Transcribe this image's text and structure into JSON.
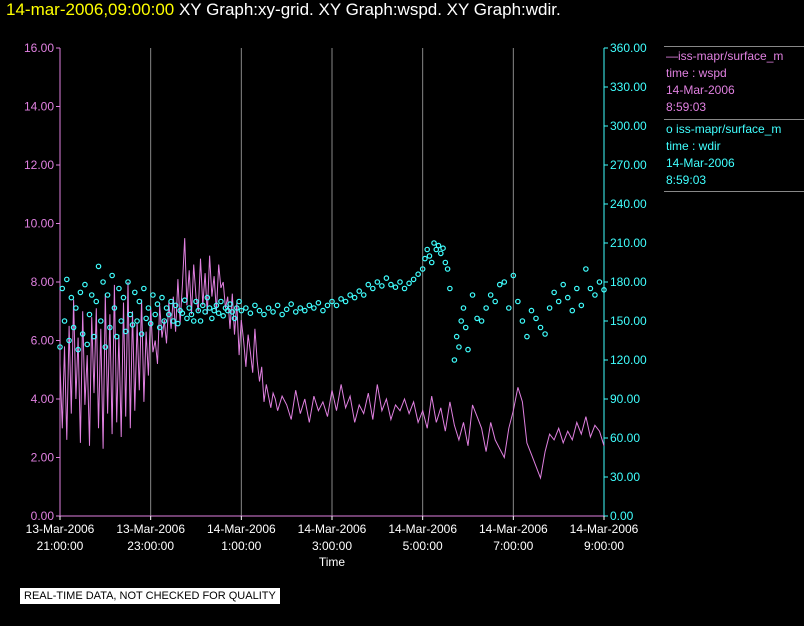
{
  "title": {
    "date": "14-mar-2006,09:00:00",
    "graphs": "XY Graph:xy-grid.  XY Graph:wspd.  XY Graph:wdir."
  },
  "legend": [
    {
      "sym": "—",
      "name": "iss-mapr/surface_m",
      "line2": "time : wspd",
      "line3": "14-Mar-2006",
      "line4": "8:59:03"
    },
    {
      "sym": "o",
      "name": "iss-mapr/surface_m",
      "line2": "time : wdir",
      "line3": "14-Mar-2006",
      "line4": "8:59:03"
    }
  ],
  "notice": "REAL-TIME DATA, NOT CHECKED FOR QUALITY",
  "colors": {
    "wspd": "#e080e0",
    "wdir": "#40ffff",
    "grid": "#888888",
    "axis_left": "#e080e0",
    "axis_right": "#40ffff",
    "tick_text": "#ffffff"
  },
  "chart_data": {
    "type": "line",
    "xlabel": "Time",
    "x_ticks": [
      {
        "h": 21,
        "l1": "13-Mar-2006",
        "l2": "21:00:00"
      },
      {
        "h": 23,
        "l1": "13-Mar-2006",
        "l2": "23:00:00"
      },
      {
        "h": 25,
        "l1": "14-Mar-2006",
        "l2": "1:00:00"
      },
      {
        "h": 27,
        "l1": "14-Mar-2006",
        "l2": "3:00:00"
      },
      {
        "h": 29,
        "l1": "14-Mar-2006",
        "l2": "5:00:00"
      },
      {
        "h": 31,
        "l1": "14-Mar-2006",
        "l2": "7:00:00"
      },
      {
        "h": 33,
        "l1": "14-Mar-2006",
        "l2": "9:00:00"
      }
    ],
    "xlim": [
      21,
      33
    ],
    "y_left": {
      "min": 0,
      "max": 16,
      "ticks": [
        "0.00",
        "2.00",
        "4.00",
        "6.00",
        "8.00",
        "10.00",
        "12.00",
        "14.00",
        "16.00"
      ]
    },
    "y_right": {
      "min": 0,
      "max": 360,
      "ticks": [
        "0.00",
        "30.00",
        "60.00",
        "90.00",
        "120.00",
        "150.00",
        "180.00",
        "210.00",
        "240.00",
        "270.00",
        "300.00",
        "330.00",
        "360.00"
      ]
    },
    "grid": true,
    "series": [
      {
        "name": "wspd",
        "axis": "left",
        "style": "line",
        "x": [
          21.0,
          21.05,
          21.1,
          21.15,
          21.2,
          21.25,
          21.3,
          21.35,
          21.4,
          21.45,
          21.5,
          21.55,
          21.6,
          21.65,
          21.7,
          21.75,
          21.8,
          21.85,
          21.9,
          21.95,
          22.0,
          22.05,
          22.1,
          22.15,
          22.2,
          22.25,
          22.3,
          22.35,
          22.4,
          22.45,
          22.5,
          22.55,
          22.6,
          22.65,
          22.7,
          22.75,
          22.8,
          22.85,
          22.9,
          22.95,
          23.0,
          23.05,
          23.1,
          23.15,
          23.2,
          23.25,
          23.3,
          23.35,
          23.4,
          23.45,
          23.5,
          23.55,
          23.6,
          23.65,
          23.7,
          23.75,
          23.8,
          23.85,
          23.9,
          23.95,
          24.0,
          24.05,
          24.1,
          24.15,
          24.2,
          24.25,
          24.3,
          24.35,
          24.4,
          24.45,
          24.5,
          24.55,
          24.6,
          24.65,
          24.7,
          24.75,
          24.8,
          24.85,
          24.9,
          24.95,
          25.0,
          25.05,
          25.1,
          25.15,
          25.2,
          25.25,
          25.3,
          25.35,
          25.4,
          25.45,
          25.5,
          25.55,
          25.6,
          25.65,
          25.7,
          25.75,
          25.8,
          25.9,
          26.0,
          26.1,
          26.2,
          26.3,
          26.4,
          26.5,
          26.6,
          26.7,
          26.8,
          26.9,
          27.0,
          27.1,
          27.2,
          27.3,
          27.4,
          27.5,
          27.6,
          27.7,
          27.8,
          27.9,
          28.0,
          28.1,
          28.2,
          28.3,
          28.4,
          28.5,
          28.6,
          28.7,
          28.8,
          28.9,
          29.0,
          29.1,
          29.2,
          29.3,
          29.4,
          29.5,
          29.6,
          29.7,
          29.8,
          29.9,
          30.0,
          30.1,
          30.2,
          30.3,
          30.4,
          30.5,
          30.6,
          30.7,
          30.8,
          30.9,
          31.0,
          31.1,
          31.2,
          31.3,
          31.4,
          31.5,
          31.6,
          31.7,
          31.8,
          31.9,
          32.0,
          32.1,
          32.2,
          32.3,
          32.4,
          32.5,
          32.6,
          32.7,
          32.8,
          32.9,
          33.0
        ],
        "values": [
          5.2,
          3.0,
          5.8,
          2.6,
          6.5,
          3.5,
          7.4,
          4.0,
          6.1,
          2.5,
          7.0,
          3.8,
          5.5,
          2.4,
          6.8,
          4.2,
          7.1,
          3.0,
          6.4,
          2.3,
          7.6,
          3.5,
          6.9,
          2.8,
          7.9,
          3.2,
          6.2,
          2.7,
          7.3,
          3.4,
          8.0,
          3.0,
          7.0,
          3.6,
          6.6,
          4.3,
          7.4,
          3.9,
          6.3,
          4.8,
          7.1,
          5.6,
          6.0,
          5.2,
          7.2,
          6.1,
          6.7,
          5.9,
          7.3,
          6.4,
          7.5,
          6.3,
          8.1,
          6.6,
          7.9,
          9.5,
          7.2,
          8.4,
          6.9,
          8.6,
          7.5,
          7.0,
          8.8,
          7.2,
          8.3,
          6.9,
          8.9,
          7.5,
          8.2,
          7.0,
          8.6,
          7.8,
          8.0,
          7.1,
          7.5,
          6.4,
          7.6,
          6.2,
          7.3,
          5.5,
          6.7,
          6.0,
          5.1,
          6.2,
          5.6,
          4.9,
          6.4,
          5.3,
          4.6,
          5.1,
          3.9,
          4.5,
          4.1,
          3.7,
          4.2,
          4.0,
          3.6,
          4.1,
          3.8,
          3.3,
          4.3,
          3.5,
          4.0,
          3.2,
          4.1,
          3.6,
          3.9,
          3.4,
          4.3,
          3.6,
          4.5,
          3.7,
          4.1,
          3.2,
          3.8,
          3.5,
          4.2,
          3.3,
          4.5,
          3.6,
          4.0,
          3.3,
          3.8,
          3.6,
          4.0,
          3.5,
          3.9,
          3.2,
          3.6,
          3.0,
          4.1,
          3.2,
          3.7,
          2.9,
          3.9,
          3.1,
          2.6,
          3.2,
          2.4,
          3.8,
          3.4,
          3.0,
          2.2,
          3.2,
          2.6,
          2.3,
          2.0,
          3.0,
          3.6,
          4.4,
          3.9,
          2.5,
          2.1,
          1.7,
          1.3,
          2.2,
          2.8,
          2.6,
          3.0,
          2.5,
          2.9,
          2.6,
          3.2,
          2.8,
          3.4,
          2.7,
          3.1,
          2.9,
          2.4
        ]
      },
      {
        "name": "wdir",
        "axis": "right",
        "style": "scatter",
        "x": [
          21.0,
          21.05,
          21.1,
          21.15,
          21.2,
          21.25,
          21.3,
          21.35,
          21.4,
          21.45,
          21.5,
          21.55,
          21.6,
          21.65,
          21.7,
          21.75,
          21.8,
          21.85,
          21.9,
          21.95,
          22.0,
          22.05,
          22.1,
          22.15,
          22.2,
          22.25,
          22.3,
          22.35,
          22.4,
          22.45,
          22.5,
          22.55,
          22.6,
          22.65,
          22.7,
          22.75,
          22.8,
          22.85,
          22.9,
          22.95,
          23.0,
          23.05,
          23.1,
          23.15,
          23.2,
          23.25,
          23.3,
          23.35,
          23.4,
          23.45,
          23.5,
          23.55,
          23.6,
          23.65,
          23.7,
          23.75,
          23.8,
          23.85,
          23.9,
          23.95,
          24.0,
          24.05,
          24.1,
          24.15,
          24.2,
          24.25,
          24.3,
          24.35,
          24.4,
          24.45,
          24.5,
          24.55,
          24.6,
          24.65,
          24.7,
          24.75,
          24.8,
          24.85,
          24.9,
          24.95,
          25.0,
          25.1,
          25.2,
          25.3,
          25.4,
          25.5,
          25.6,
          25.7,
          25.8,
          25.9,
          26.0,
          26.1,
          26.2,
          26.3,
          26.4,
          26.5,
          26.6,
          26.7,
          26.8,
          26.9,
          27.0,
          27.1,
          27.2,
          27.3,
          27.4,
          27.5,
          27.6,
          27.7,
          27.8,
          27.9,
          28.0,
          28.1,
          28.2,
          28.3,
          28.4,
          28.5,
          28.6,
          28.7,
          28.8,
          28.9,
          29.0,
          29.05,
          29.1,
          29.15,
          29.2,
          29.25,
          29.3,
          29.35,
          29.4,
          29.45,
          29.5,
          29.55,
          29.6,
          29.7,
          29.75,
          29.8,
          29.85,
          29.9,
          29.95,
          30.0,
          30.1,
          30.2,
          30.3,
          30.4,
          30.5,
          30.6,
          30.7,
          30.8,
          30.9,
          31.0,
          31.1,
          31.2,
          31.3,
          31.4,
          31.5,
          31.6,
          31.7,
          31.8,
          31.9,
          32.0,
          32.1,
          32.2,
          32.3,
          32.4,
          32.5,
          32.6,
          32.7,
          32.8,
          32.9,
          33.0
        ],
        "values": [
          130,
          175,
          150,
          182,
          135,
          168,
          145,
          160,
          128,
          172,
          140,
          178,
          132,
          155,
          170,
          138,
          165,
          192,
          150,
          180,
          130,
          170,
          145,
          185,
          160,
          138,
          175,
          150,
          168,
          142,
          180,
          155,
          147,
          172,
          150,
          165,
          140,
          175,
          152,
          160,
          148,
          170,
          155,
          163,
          145,
          168,
          150,
          160,
          155,
          165,
          150,
          162,
          148,
          158,
          156,
          166,
          152,
          160,
          155,
          150,
          165,
          158,
          150,
          162,
          157,
          168,
          160,
          152,
          158,
          162,
          156,
          165,
          154,
          160,
          158,
          163,
          157,
          152,
          160,
          165,
          158,
          160,
          156,
          162,
          158,
          155,
          160,
          157,
          162,
          155,
          159,
          163,
          157,
          160,
          158,
          162,
          160,
          164,
          158,
          162,
          165,
          162,
          167,
          165,
          170,
          168,
          173,
          170,
          178,
          175,
          180,
          177,
          183,
          178,
          176,
          180,
          175,
          179,
          182,
          186,
          190,
          198,
          205,
          200,
          195,
          210,
          205,
          208,
          202,
          206,
          195,
          190,
          175,
          120,
          138,
          130,
          150,
          160,
          145,
          128,
          170,
          152,
          150,
          160,
          170,
          165,
          178,
          180,
          160,
          185,
          165,
          150,
          138,
          158,
          152,
          145,
          140,
          160,
          172,
          165,
          178,
          168,
          158,
          175,
          162,
          190,
          175,
          170,
          180,
          174
        ]
      }
    ]
  }
}
